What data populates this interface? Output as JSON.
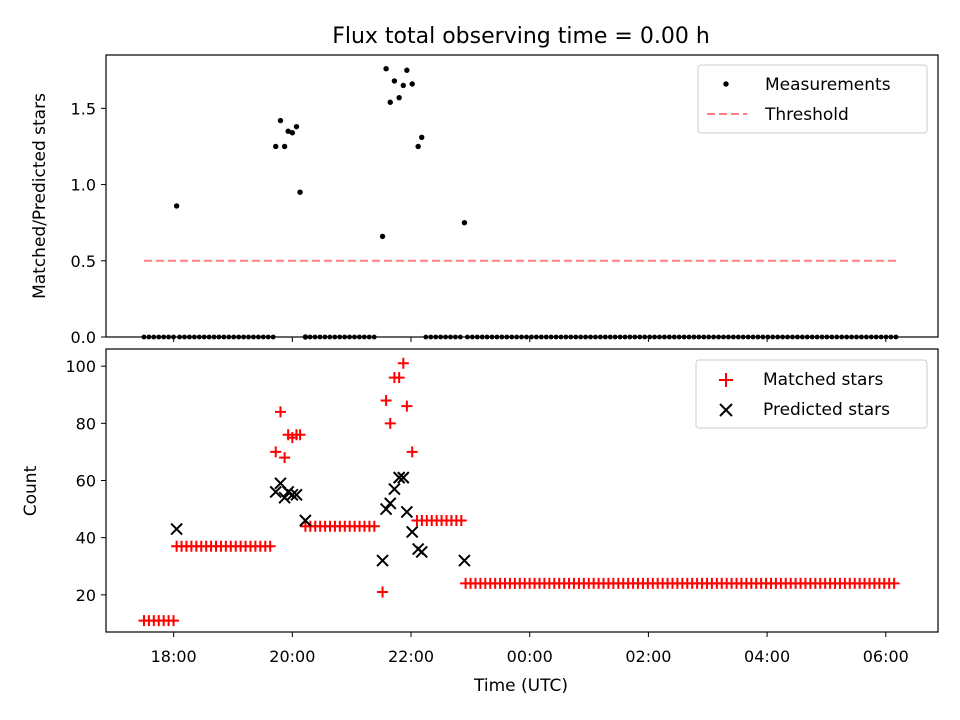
{
  "title": "Flux total observing time = 0.00 h",
  "colors": {
    "measurement": "#000000",
    "threshold": "#ff7f7f",
    "matched": "#ff0000",
    "predicted": "#000000"
  },
  "x_ticks": [
    {
      "t": 18,
      "label": "18:00"
    },
    {
      "t": 20,
      "label": "20:00"
    },
    {
      "t": 22,
      "label": "22:00"
    },
    {
      "t": 24,
      "label": "00:00"
    },
    {
      "t": 26,
      "label": "02:00"
    },
    {
      "t": 28,
      "label": "04:00"
    },
    {
      "t": 30,
      "label": "06:00"
    }
  ],
  "chart_data": [
    {
      "type": "scatter",
      "title": "Flux total observing time = 0.00 h",
      "ylabel": "Matched/Predicted stars",
      "xlabel": "",
      "xlim": [
        16.86,
        30.88
      ],
      "ylim": [
        0.0,
        1.85
      ],
      "yticks": [
        0.0,
        0.5,
        1.0,
        1.5
      ],
      "legend": "top-right",
      "series": [
        {
          "name": "Measurements",
          "kind": "scatter",
          "x": [
            18.05,
            19.72,
            19.8,
            19.87,
            19.93,
            20.0,
            20.07,
            20.13,
            20.22,
            21.52,
            21.58,
            21.65,
            21.72,
            21.8,
            21.87,
            21.93,
            22.02,
            22.12,
            22.18,
            22.9
          ],
          "y": [
            0.86,
            1.25,
            1.42,
            1.25,
            1.35,
            1.34,
            1.38,
            0.95,
            0.0,
            0.66,
            1.76,
            1.54,
            1.68,
            1.57,
            1.65,
            1.75,
            1.66,
            1.25,
            1.31,
            0.75
          ]
        },
        {
          "name": "Threshold",
          "kind": "dashed-line",
          "x": [
            17.5,
            30.2
          ],
          "y": [
            0.5,
            0.5
          ]
        }
      ],
      "zero_runs": [
        [
          17.5,
          18.0
        ],
        [
          18.1,
          19.68
        ],
        [
          20.3,
          21.45
        ],
        [
          22.25,
          22.85
        ],
        [
          22.95,
          30.2
        ]
      ]
    },
    {
      "type": "scatter",
      "title": "",
      "ylabel": "Count",
      "xlabel": "Time (UTC)",
      "xlim": [
        16.86,
        30.88
      ],
      "ylim": [
        7,
        106
      ],
      "yticks": [
        20,
        40,
        60,
        80,
        100
      ],
      "legend": "top-right",
      "series": [
        {
          "name": "Matched stars",
          "kind": "plus",
          "x": [
            19.72,
            19.8,
            19.87,
            19.93,
            20.0,
            20.07,
            20.13,
            21.52,
            21.58,
            21.65,
            21.72,
            21.8,
            21.87,
            21.93,
            22.02
          ],
          "y": [
            70,
            84,
            68,
            76,
            75,
            76,
            76,
            21,
            88,
            80,
            96,
            96,
            101,
            86,
            70
          ],
          "runs": [
            {
              "x": [
                17.5,
                18.0
              ],
              "y": 11
            },
            {
              "x": [
                18.05,
                19.68
              ],
              "y": 37
            },
            {
              "x": [
                20.22,
                21.45
              ],
              "y": 44
            },
            {
              "x": [
                22.1,
                22.85
              ],
              "y": 46
            },
            {
              "x": [
                22.92,
                30.2
              ],
              "y": 24
            }
          ]
        },
        {
          "name": "Predicted stars",
          "kind": "x",
          "x": [
            18.05,
            19.72,
            19.8,
            19.87,
            19.93,
            20.0,
            20.07,
            20.22,
            21.52,
            21.58,
            21.65,
            21.72,
            21.8,
            21.87,
            21.93,
            22.02,
            22.12,
            22.18,
            22.9
          ],
          "y": [
            43,
            56,
            59,
            54,
            56,
            55,
            55,
            46,
            32,
            50,
            52,
            57,
            61,
            61,
            49,
            42,
            36,
            35,
            32
          ]
        }
      ]
    }
  ]
}
